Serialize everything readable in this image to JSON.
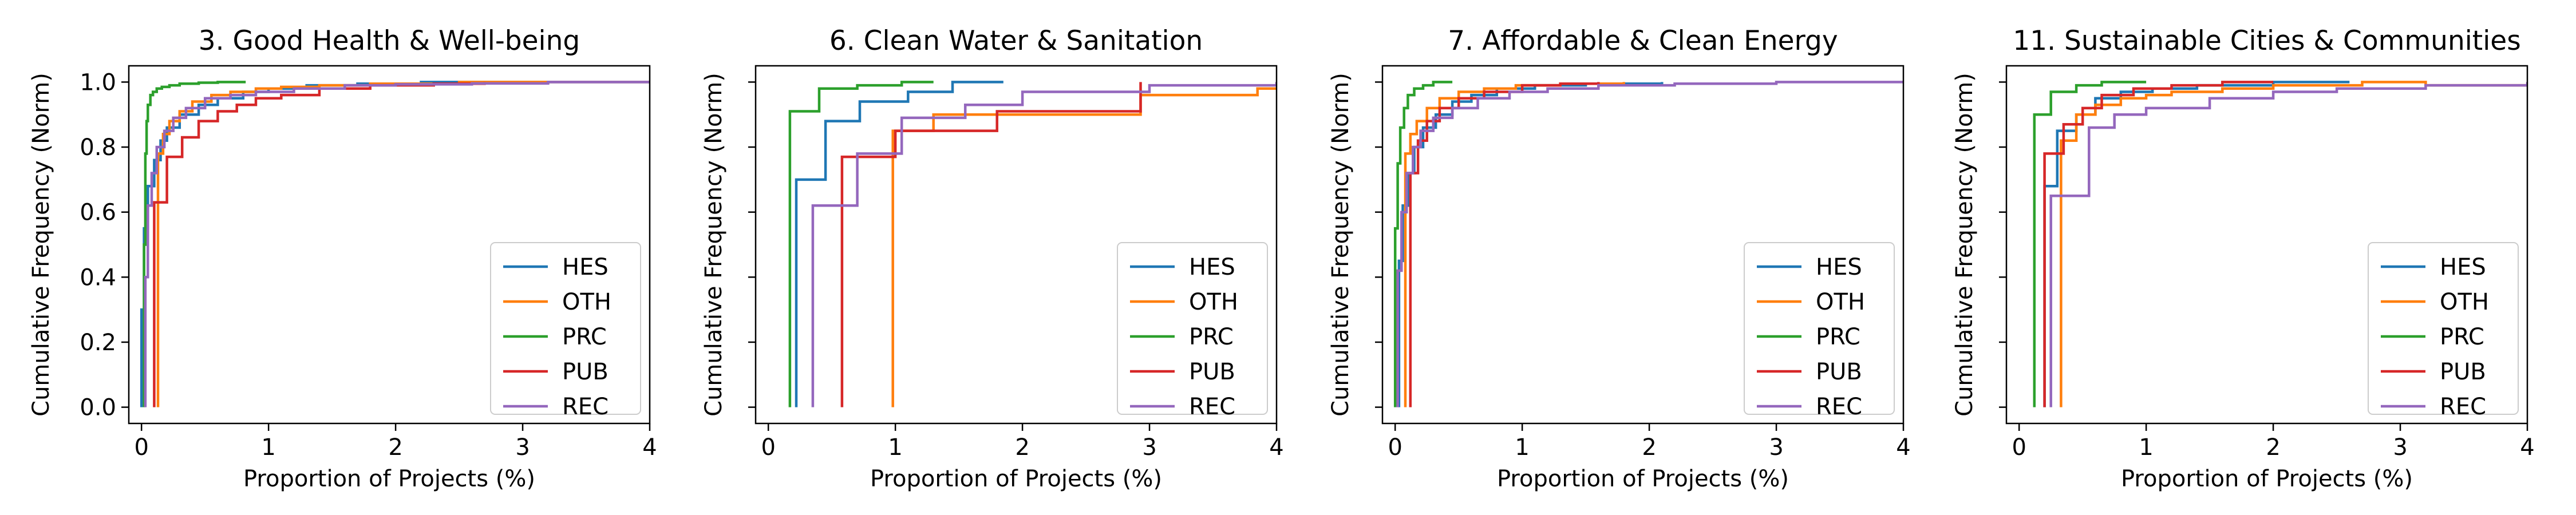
{
  "colors": {
    "HES": "#1f77b4",
    "OTH": "#ff7f0e",
    "PRC": "#2ca02c",
    "PUB": "#d62728",
    "REC": "#9467bd"
  },
  "chart_data": [
    {
      "type": "line",
      "step": true,
      "title": "3. Good Health & Well-being",
      "xlabel": "Proportion of Projects (%)",
      "ylabel": "Cumulative Frequency (Norm)",
      "xlim": [
        -0.1,
        4
      ],
      "ylim": [
        -0.05,
        1.05
      ],
      "xticks": [
        0,
        1,
        2,
        3,
        4
      ],
      "yticks": [
        0.0,
        0.2,
        0.4,
        0.6,
        0.8,
        1.0
      ],
      "ytick_labels": [
        "0.0",
        "0.2",
        "0.4",
        "0.6",
        "0.8",
        "1.0"
      ],
      "legend": "lower-right",
      "series": [
        {
          "name": "HES",
          "x": [
            0.0,
            0.0,
            0.02,
            0.05,
            0.1,
            0.15,
            0.2,
            0.3,
            0.45,
            0.6,
            0.8,
            1.0,
            1.3,
            1.7,
            2.2,
            4.0
          ],
          "y": [
            0.0,
            0.3,
            0.55,
            0.68,
            0.76,
            0.82,
            0.86,
            0.9,
            0.93,
            0.95,
            0.97,
            0.98,
            0.99,
            0.995,
            1.0,
            1.0
          ]
        },
        {
          "name": "OTH",
          "x": [
            0.13,
            0.13,
            0.17,
            0.22,
            0.3,
            0.4,
            0.55,
            0.7,
            0.9,
            1.1,
            1.4,
            1.8,
            2.5,
            4.0
          ],
          "y": [
            0.0,
            0.78,
            0.84,
            0.88,
            0.91,
            0.94,
            0.96,
            0.97,
            0.98,
            0.985,
            0.99,
            0.995,
            1.0,
            1.0
          ]
        },
        {
          "name": "PRC",
          "x": [
            0.02,
            0.02,
            0.03,
            0.04,
            0.05,
            0.07,
            0.09,
            0.12,
            0.16,
            0.22,
            0.3,
            0.45,
            0.6,
            0.82
          ],
          "y": [
            0.0,
            0.5,
            0.78,
            0.88,
            0.93,
            0.96,
            0.97,
            0.98,
            0.985,
            0.99,
            0.995,
            0.998,
            1.0,
            1.0
          ]
        },
        {
          "name": "PUB",
          "x": [
            0.1,
            0.1,
            0.2,
            0.32,
            0.45,
            0.6,
            0.75,
            0.9,
            1.1,
            1.4,
            1.8,
            2.3,
            2.7
          ],
          "y": [
            0.0,
            0.63,
            0.77,
            0.83,
            0.88,
            0.91,
            0.93,
            0.95,
            0.96,
            0.98,
            0.99,
            0.995,
            1.0
          ]
        },
        {
          "name": "REC",
          "x": [
            0.03,
            0.03,
            0.05,
            0.08,
            0.12,
            0.18,
            0.25,
            0.35,
            0.5,
            0.7,
            0.9,
            1.2,
            1.6,
            2.0,
            2.6,
            3.2,
            4.0
          ],
          "y": [
            0.0,
            0.4,
            0.62,
            0.72,
            0.8,
            0.85,
            0.89,
            0.92,
            0.95,
            0.96,
            0.97,
            0.98,
            0.99,
            0.993,
            0.996,
            1.0,
            1.0
          ]
        }
      ]
    },
    {
      "type": "line",
      "step": true,
      "title": "6. Clean Water & Sanitation",
      "xlabel": "Proportion of Projects (%)",
      "ylabel": "Cumulative Frequency (Norm)",
      "xlim": [
        -0.1,
        4
      ],
      "ylim": [
        -0.05,
        1.05
      ],
      "xticks": [
        0,
        1,
        2,
        3,
        4
      ],
      "yticks": [
        0.0,
        0.2,
        0.4,
        0.6,
        0.8,
        1.0
      ],
      "ytick_labels": [
        "",
        "",
        "",
        "",
        "",
        ""
      ],
      "legend": "lower-right",
      "series": [
        {
          "name": "HES",
          "x": [
            0.22,
            0.22,
            0.45,
            0.72,
            1.1,
            1.45,
            1.85
          ],
          "y": [
            0.0,
            0.7,
            0.88,
            0.94,
            0.97,
            1.0,
            1.0
          ]
        },
        {
          "name": "OTH",
          "x": [
            0.98,
            0.98,
            1.3,
            2.93,
            3.85,
            4.0
          ],
          "y": [
            0.0,
            0.85,
            0.9,
            0.96,
            0.98,
            0.98
          ]
        },
        {
          "name": "PRC",
          "x": [
            0.17,
            0.17,
            0.4,
            0.7,
            1.05,
            1.3
          ],
          "y": [
            0.0,
            0.91,
            0.98,
            0.99,
            1.0,
            1.0
          ]
        },
        {
          "name": "PUB",
          "x": [
            0.58,
            0.58,
            1.0,
            1.8,
            2.93
          ],
          "y": [
            0.0,
            0.77,
            0.85,
            0.91,
            1.0
          ]
        },
        {
          "name": "REC",
          "x": [
            0.35,
            0.35,
            0.7,
            1.05,
            1.55,
            2.0,
            3.0,
            4.0
          ],
          "y": [
            0.0,
            0.62,
            0.78,
            0.89,
            0.93,
            0.97,
            0.99,
            1.0
          ]
        }
      ]
    },
    {
      "type": "line",
      "step": true,
      "title": "7. Affordable & Clean Energy",
      "xlabel": "Proportion of Projects (%)",
      "ylabel": "Cumulative Frequency (Norm)",
      "xlim": [
        -0.1,
        4
      ],
      "ylim": [
        -0.05,
        1.05
      ],
      "xticks": [
        0,
        1,
        2,
        3,
        4
      ],
      "yticks": [
        0.0,
        0.2,
        0.4,
        0.6,
        0.8,
        1.0
      ],
      "ytick_labels": [
        "",
        "",
        "",
        "",
        "",
        ""
      ],
      "legend": "lower-right",
      "series": [
        {
          "name": "HES",
          "x": [
            0.03,
            0.03,
            0.06,
            0.1,
            0.15,
            0.22,
            0.32,
            0.45,
            0.6,
            0.8,
            1.1,
            1.5,
            2.1
          ],
          "y": [
            0.0,
            0.45,
            0.62,
            0.72,
            0.8,
            0.86,
            0.9,
            0.94,
            0.96,
            0.98,
            0.99,
            0.995,
            1.0
          ]
        },
        {
          "name": "OTH",
          "x": [
            0.08,
            0.08,
            0.12,
            0.17,
            0.25,
            0.35,
            0.5,
            0.7,
            0.95,
            1.3,
            1.8
          ],
          "y": [
            0.0,
            0.78,
            0.84,
            0.88,
            0.92,
            0.95,
            0.97,
            0.98,
            0.99,
            0.995,
            1.0
          ]
        },
        {
          "name": "PRC",
          "x": [
            0.0,
            0.0,
            0.02,
            0.04,
            0.07,
            0.1,
            0.15,
            0.22,
            0.3,
            0.45
          ],
          "y": [
            0.0,
            0.55,
            0.75,
            0.86,
            0.92,
            0.96,
            0.98,
            0.99,
            1.0,
            1.0
          ]
        },
        {
          "name": "PUB",
          "x": [
            0.12,
            0.12,
            0.18,
            0.25,
            0.35,
            0.5,
            0.7,
            1.0,
            1.3,
            1.6
          ],
          "y": [
            0.0,
            0.72,
            0.82,
            0.88,
            0.92,
            0.95,
            0.97,
            0.99,
            0.995,
            1.0
          ]
        },
        {
          "name": "REC",
          "x": [
            0.02,
            0.02,
            0.05,
            0.09,
            0.14,
            0.2,
            0.3,
            0.45,
            0.65,
            0.9,
            1.2,
            1.6,
            2.2,
            3.0,
            4.0
          ],
          "y": [
            0.0,
            0.42,
            0.6,
            0.72,
            0.8,
            0.85,
            0.89,
            0.92,
            0.95,
            0.97,
            0.98,
            0.99,
            0.995,
            1.0,
            1.0
          ]
        }
      ]
    },
    {
      "type": "line",
      "step": true,
      "title": "11.  Sustainable Cities & Communities",
      "xlabel": "Proportion of Projects (%)",
      "ylabel": "Cumulative Frequency (Norm)",
      "xlim": [
        -0.1,
        4
      ],
      "ylim": [
        -0.05,
        1.05
      ],
      "xticks": [
        0,
        1,
        2,
        3,
        4
      ],
      "yticks": [
        0.0,
        0.2,
        0.4,
        0.6,
        0.8,
        1.0
      ],
      "ytick_labels": [
        "",
        "",
        "",
        "",
        "",
        ""
      ],
      "legend": "lower-right",
      "series": [
        {
          "name": "HES",
          "x": [
            0.2,
            0.2,
            0.3,
            0.45,
            0.6,
            0.8,
            1.05,
            1.4,
            2.0,
            2.6
          ],
          "y": [
            0.0,
            0.68,
            0.85,
            0.9,
            0.95,
            0.97,
            0.98,
            0.99,
            1.0,
            1.0
          ]
        },
        {
          "name": "OTH",
          "x": [
            0.33,
            0.33,
            0.45,
            0.6,
            0.8,
            1.0,
            1.2,
            1.6,
            2.0,
            2.7,
            3.2,
            4.0
          ],
          "y": [
            0.0,
            0.82,
            0.9,
            0.93,
            0.95,
            0.96,
            0.97,
            0.98,
            0.99,
            1.0,
            0.99,
            0.99
          ]
        },
        {
          "name": "PRC",
          "x": [
            0.12,
            0.12,
            0.25,
            0.45,
            0.65,
            1.0
          ],
          "y": [
            0.0,
            0.9,
            0.97,
            0.99,
            1.0,
            1.0
          ]
        },
        {
          "name": "PUB",
          "x": [
            0.2,
            0.2,
            0.35,
            0.5,
            0.65,
            0.9,
            1.2,
            1.6,
            2.0
          ],
          "y": [
            0.0,
            0.78,
            0.87,
            0.92,
            0.96,
            0.98,
            0.99,
            1.0,
            1.0
          ]
        },
        {
          "name": "REC",
          "x": [
            0.25,
            0.25,
            0.55,
            0.75,
            1.0,
            1.5,
            2.0,
            2.5,
            3.2,
            4.0
          ],
          "y": [
            0.0,
            0.65,
            0.86,
            0.9,
            0.92,
            0.95,
            0.97,
            0.98,
            0.99,
            1.0
          ]
        }
      ]
    }
  ]
}
